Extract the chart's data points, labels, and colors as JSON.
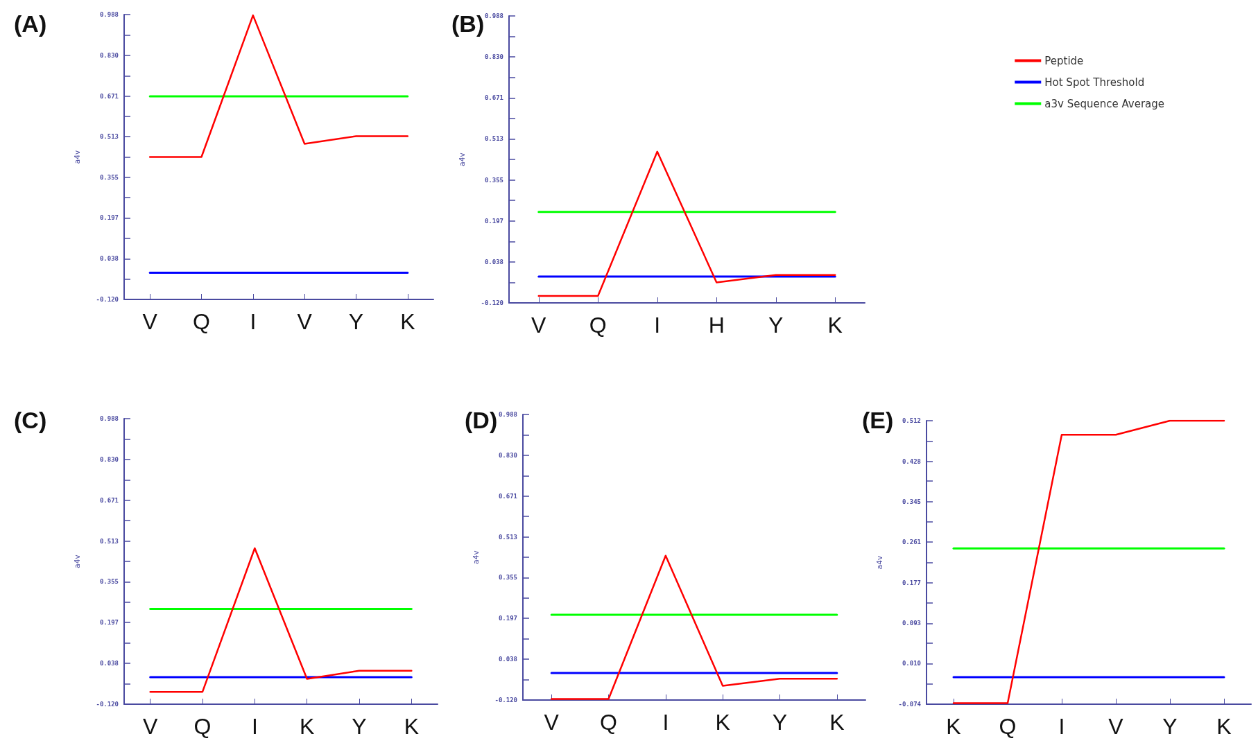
{
  "chart_data": [
    {
      "type": "line",
      "title": "(A)",
      "ylabel": "a4v",
      "categories": [
        "V",
        "Q",
        "I",
        "V",
        "Y",
        "K"
      ],
      "marker": "none",
      "legend": false,
      "ylim": [
        -0.12,
        0.988
      ],
      "yticks": [
        {
          "value": -0.12,
          "label": "-0.120"
        },
        {
          "value": -0.041,
          "label": null
        },
        {
          "value": 0.038,
          "label": "0.038"
        },
        {
          "value": 0.117,
          "label": null
        },
        {
          "value": 0.197,
          "label": "0.197"
        },
        {
          "value": 0.276,
          "label": null
        },
        {
          "value": 0.355,
          "label": "0.355"
        },
        {
          "value": 0.434,
          "label": null
        },
        {
          "value": 0.513,
          "label": "0.513"
        },
        {
          "value": 0.592,
          "label": null
        },
        {
          "value": 0.671,
          "label": "0.671"
        },
        {
          "value": 0.75,
          "label": null
        },
        {
          "value": 0.83,
          "label": "0.830"
        },
        {
          "value": 0.909,
          "label": null
        },
        {
          "value": 0.988,
          "label": "0.988"
        }
      ],
      "series": [
        {
          "color": "#ff0000",
          "values": [
            0.434,
            0.434,
            0.985,
            0.485,
            0.515,
            0.515
          ]
        },
        {
          "color": "#0000ff",
          "values": [
            -0.016,
            -0.016,
            -0.016,
            -0.016,
            -0.016,
            -0.016
          ]
        },
        {
          "color": "#00ff00",
          "values": [
            0.67,
            0.67,
            0.67,
            0.67,
            0.67,
            0.67
          ]
        }
      ]
    },
    {
      "type": "line",
      "title": "(B)",
      "ylabel": "a4v",
      "categories": [
        "V",
        "Q",
        "I",
        "H",
        "Y",
        "K"
      ],
      "marker": "none",
      "legend": "right",
      "ylim": [
        -0.12,
        0.988
      ],
      "yticks": [
        {
          "value": -0.12,
          "label": "-0.120"
        },
        {
          "value": -0.041,
          "label": null
        },
        {
          "value": 0.038,
          "label": "0.038"
        },
        {
          "value": 0.117,
          "label": null
        },
        {
          "value": 0.197,
          "label": "0.197"
        },
        {
          "value": 0.276,
          "label": null
        },
        {
          "value": 0.355,
          "label": "0.355"
        },
        {
          "value": 0.434,
          "label": null
        },
        {
          "value": 0.513,
          "label": "0.513"
        },
        {
          "value": 0.592,
          "label": null
        },
        {
          "value": 0.671,
          "label": "0.671"
        },
        {
          "value": 0.75,
          "label": null
        },
        {
          "value": 0.83,
          "label": "0.830"
        },
        {
          "value": 0.909,
          "label": null
        },
        {
          "value": 0.988,
          "label": "0.988"
        }
      ],
      "series": [
        {
          "name": "Peptide",
          "color": "#ff0000",
          "values": [
            -0.093,
            -0.093,
            0.464,
            -0.041,
            -0.012,
            -0.012
          ]
        },
        {
          "name": "Hot Spot Threshold",
          "color": "#0000ff",
          "values": [
            -0.018,
            -0.018,
            -0.018,
            -0.018,
            -0.018,
            -0.018
          ]
        },
        {
          "name": "a3v Sequence Average",
          "color": "#00ff00",
          "values": [
            0.231,
            0.231,
            0.231,
            0.231,
            0.231,
            0.231
          ]
        }
      ]
    },
    {
      "type": "line",
      "title": "(C)",
      "ylabel": "a4v",
      "categories": [
        "V",
        "Q",
        "I",
        "K",
        "Y",
        "K"
      ],
      "marker": "none",
      "legend": false,
      "ylim": [
        -0.12,
        0.988
      ],
      "yticks": [
        {
          "value": -0.12,
          "label": "-0.120"
        },
        {
          "value": -0.041,
          "label": null
        },
        {
          "value": 0.038,
          "label": "0.038"
        },
        {
          "value": 0.117,
          "label": null
        },
        {
          "value": 0.197,
          "label": "0.197"
        },
        {
          "value": 0.276,
          "label": null
        },
        {
          "value": 0.355,
          "label": "0.355"
        },
        {
          "value": 0.434,
          "label": null
        },
        {
          "value": 0.513,
          "label": "0.513"
        },
        {
          "value": 0.592,
          "label": null
        },
        {
          "value": 0.671,
          "label": "0.671"
        },
        {
          "value": 0.75,
          "label": null
        },
        {
          "value": 0.83,
          "label": "0.830"
        },
        {
          "value": 0.909,
          "label": null
        },
        {
          "value": 0.988,
          "label": "0.988"
        }
      ],
      "series": [
        {
          "color": "#ff0000",
          "values": [
            -0.072,
            -0.072,
            0.485,
            -0.022,
            0.01,
            0.01
          ]
        },
        {
          "color": "#0000ff",
          "values": [
            -0.015,
            -0.015,
            -0.015,
            -0.015,
            -0.015,
            -0.015
          ]
        },
        {
          "color": "#00ff00",
          "values": [
            0.25,
            0.25,
            0.25,
            0.25,
            0.25,
            0.25
          ]
        }
      ]
    },
    {
      "type": "line",
      "title": "(D)",
      "ylabel": "a4v",
      "categories": [
        "V",
        "Q",
        "I",
        "K",
        "Y",
        "K"
      ],
      "marker": "none",
      "legend": false,
      "ylim": [
        -0.12,
        0.988
      ],
      "yticks": [
        {
          "value": -0.12,
          "label": "-0.120"
        },
        {
          "value": -0.041,
          "label": null
        },
        {
          "value": 0.038,
          "label": "0.038"
        },
        {
          "value": 0.117,
          "label": null
        },
        {
          "value": 0.197,
          "label": "0.197"
        },
        {
          "value": 0.276,
          "label": null
        },
        {
          "value": 0.355,
          "label": "0.355"
        },
        {
          "value": 0.434,
          "label": null
        },
        {
          "value": 0.513,
          "label": "0.513"
        },
        {
          "value": 0.592,
          "label": null
        },
        {
          "value": 0.671,
          "label": "0.671"
        },
        {
          "value": 0.75,
          "label": null
        },
        {
          "value": 0.83,
          "label": "0.830"
        },
        {
          "value": 0.909,
          "label": null
        },
        {
          "value": 0.988,
          "label": "0.988"
        }
      ],
      "series": [
        {
          "color": "#ff0000",
          "values": [
            -0.116,
            -0.116,
            0.44,
            -0.065,
            -0.037,
            -0.037
          ]
        },
        {
          "color": "#0000ff",
          "values": [
            -0.015,
            -0.015,
            -0.015,
            -0.015,
            -0.015,
            -0.015
          ]
        },
        {
          "color": "#00ff00",
          "values": [
            0.211,
            0.211,
            0.211,
            0.211,
            0.211,
            0.211
          ]
        }
      ]
    },
    {
      "type": "line",
      "title": "(E)",
      "ylabel": "a4v",
      "categories": [
        "K",
        "Q",
        "I",
        "V",
        "Y",
        "K"
      ],
      "marker": "none",
      "legend": false,
      "ylim": [
        -0.074,
        0.512
      ],
      "yticks": [
        {
          "value": -0.074,
          "label": "-0.074"
        },
        {
          "value": -0.032,
          "label": null
        },
        {
          "value": 0.01,
          "label": "0.010"
        },
        {
          "value": 0.052,
          "label": null
        },
        {
          "value": 0.093,
          "label": "0.093"
        },
        {
          "value": 0.135,
          "label": null
        },
        {
          "value": 0.177,
          "label": "0.177"
        },
        {
          "value": 0.219,
          "label": null
        },
        {
          "value": 0.261,
          "label": "0.261"
        },
        {
          "value": 0.303,
          "label": null
        },
        {
          "value": 0.345,
          "label": "0.345"
        },
        {
          "value": 0.387,
          "label": null
        },
        {
          "value": 0.428,
          "label": "0.428"
        },
        {
          "value": 0.47,
          "label": null
        },
        {
          "value": 0.512,
          "label": "0.512"
        }
      ],
      "series": [
        {
          "color": "#ff0000",
          "values": [
            -0.072,
            -0.072,
            0.483,
            0.483,
            0.512,
            0.512
          ]
        },
        {
          "color": "#0000ff",
          "values": [
            -0.018,
            -0.018,
            -0.018,
            -0.018,
            -0.018,
            -0.018
          ]
        },
        {
          "color": "#00ff00",
          "values": [
            0.248,
            0.248,
            0.248,
            0.248,
            0.248,
            0.248
          ]
        }
      ]
    }
  ]
}
